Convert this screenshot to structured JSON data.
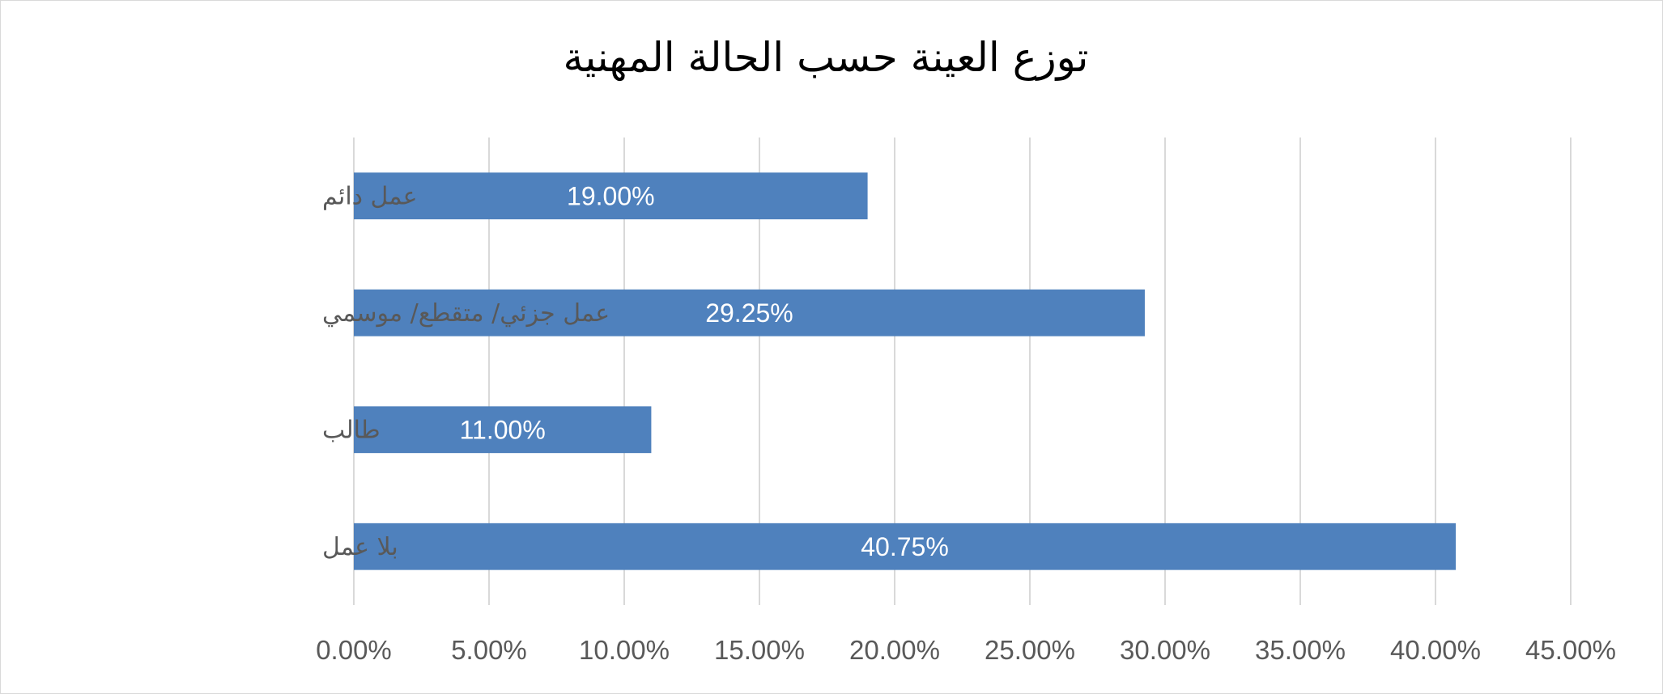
{
  "chart_data": {
    "type": "bar",
    "orientation": "horizontal",
    "title": "توزع العينة حسب الحالة المهنية",
    "categories": [
      "عمل دائم",
      "عمل جزئي/ متقطع/ موسمي",
      "طالب",
      "بلا عمل"
    ],
    "values": [
      19.0,
      29.25,
      11.0,
      40.75
    ],
    "data_labels": [
      "19.00%",
      "29.25%",
      "11.00%",
      "40.75%"
    ],
    "xlim": [
      0,
      45
    ],
    "x_ticks": [
      0,
      5,
      10,
      15,
      20,
      25,
      30,
      35,
      40,
      45
    ],
    "x_tick_labels": [
      "0.00%",
      "5.00%",
      "10.00%",
      "15.00%",
      "20.00%",
      "25.00%",
      "30.00%",
      "35.00%",
      "40.00%",
      "45.00%"
    ],
    "grid": true,
    "legend": "none",
    "bar_color": "#4f81bd"
  }
}
